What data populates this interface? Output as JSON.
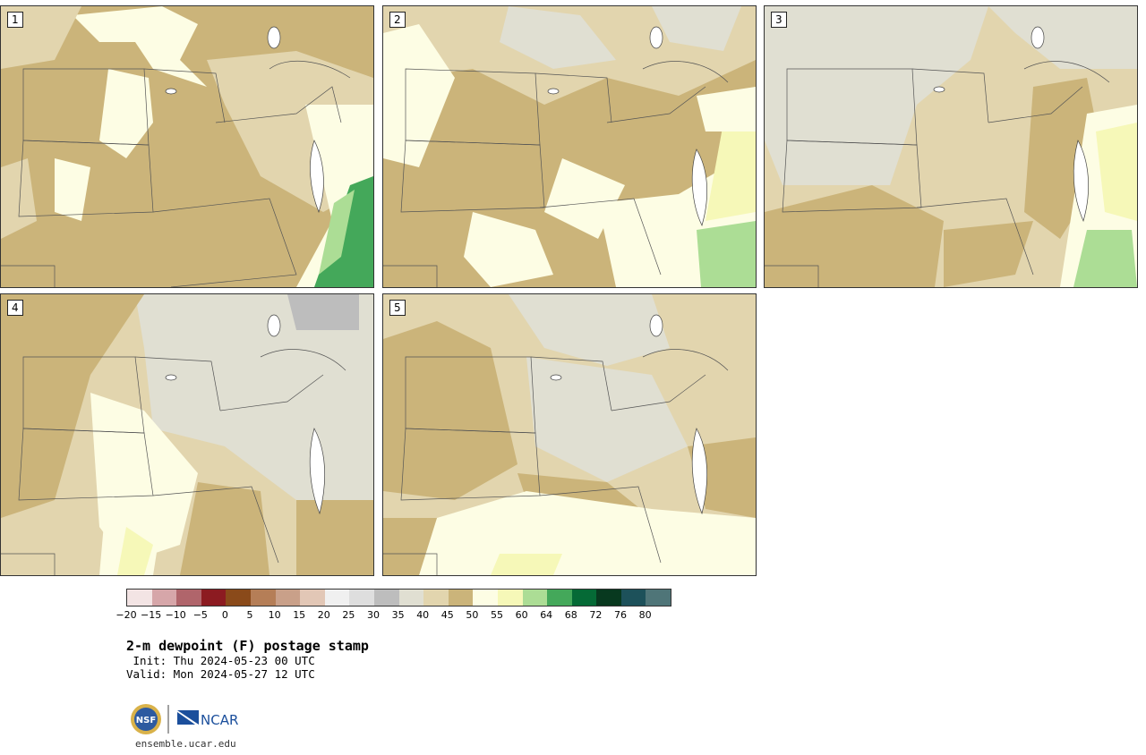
{
  "panels": [
    {
      "label": "1"
    },
    {
      "label": "2"
    },
    {
      "label": "3"
    },
    {
      "label": "4"
    },
    {
      "label": "5"
    }
  ],
  "colorbar": {
    "colors": [
      "#f3e4e4",
      "#d6a6a9",
      "#b0656b",
      "#8c1b21",
      "#8a4a1a",
      "#b57e57",
      "#c9a089",
      "#e2c7b6",
      "#f0f0f0",
      "#dedede",
      "#bdbdbd",
      "#e0dfd2",
      "#e2d5ae",
      "#cbb47a",
      "#fdfde4",
      "#f6f8b8",
      "#acdd95",
      "#44a85a",
      "#056a36",
      "#08391f",
      "#1d515a",
      "#4f7578"
    ],
    "ticks": [
      "−20",
      "−15",
      "−10",
      "−5",
      "0",
      "5",
      "10",
      "15",
      "20",
      "25",
      "30",
      "35",
      "40",
      "45",
      "50",
      "55",
      "60",
      "64",
      "68",
      "72",
      "76",
      "80"
    ]
  },
  "title": "2-m dewpoint (F) postage stamp",
  "init": " Init: Thu 2024-05-23 00 UTC",
  "valid": "Valid: Mon 2024-05-27 12 UTC",
  "footer_url": "ensemble.ucar.edu",
  "logos": {
    "nsf": "NSF",
    "ncar": "NCAR"
  }
}
